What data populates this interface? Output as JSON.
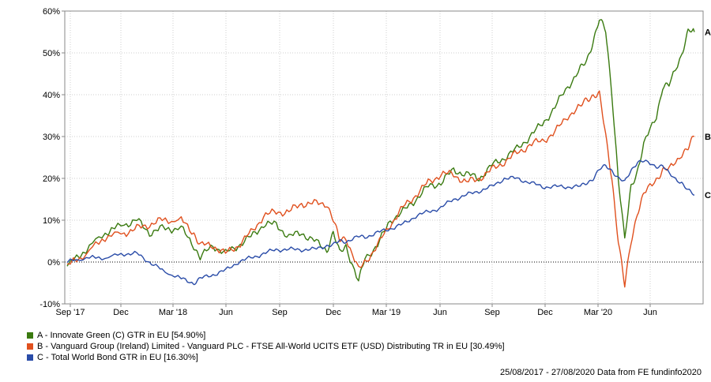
{
  "chart_data": {
    "type": "line",
    "ylim": [
      -10,
      60
    ],
    "y_ticks": [
      "-10%",
      "0%",
      "10%",
      "20%",
      "30%",
      "40%",
      "50%",
      "60%"
    ],
    "x_tick_labels": [
      "Sep '17",
      "Dec",
      "Mar '18",
      "Jun",
      "Sep",
      "Dec",
      "Mar '19",
      "Jun",
      "Sep",
      "Dec",
      "Mar '20",
      "Jun"
    ],
    "grid": true,
    "series": [
      {
        "key": "A",
        "name": "A - Innovate Green (C) GTR in EU [54.90%]",
        "color": "#3a7a10",
        "points": [
          [
            0,
            -1
          ],
          [
            3,
            3
          ],
          [
            6,
            7
          ],
          [
            9,
            9
          ],
          [
            11,
            10
          ],
          [
            13,
            7
          ],
          [
            15,
            8
          ],
          [
            18,
            8
          ],
          [
            20,
            4
          ],
          [
            21,
            1
          ],
          [
            23,
            4
          ],
          [
            25,
            2
          ],
          [
            27,
            4
          ],
          [
            29,
            6
          ],
          [
            31,
            9
          ],
          [
            33,
            9
          ],
          [
            35,
            6
          ],
          [
            37,
            7
          ],
          [
            39,
            5
          ],
          [
            41,
            3
          ],
          [
            42,
            7
          ],
          [
            43,
            2
          ],
          [
            44,
            4
          ],
          [
            46,
            -5
          ],
          [
            47,
            1
          ],
          [
            49,
            4
          ],
          [
            51,
            10
          ],
          [
            53,
            12
          ],
          [
            55,
            15
          ],
          [
            57,
            18
          ],
          [
            59,
            19
          ],
          [
            61,
            22
          ],
          [
            63,
            21
          ],
          [
            65,
            20
          ],
          [
            67,
            23
          ],
          [
            69,
            25
          ],
          [
            71,
            27
          ],
          [
            73,
            30
          ],
          [
            75,
            33
          ],
          [
            77,
            37
          ],
          [
            79,
            42
          ],
          [
            81,
            46
          ],
          [
            82,
            48
          ],
          [
            83,
            53
          ],
          [
            84,
            58
          ],
          [
            85,
            55
          ],
          [
            86,
            40
          ],
          [
            87,
            20
          ],
          [
            88,
            5
          ],
          [
            89,
            18
          ],
          [
            90,
            22
          ],
          [
            91,
            28
          ],
          [
            93,
            35
          ],
          [
            94,
            42
          ],
          [
            95,
            42
          ],
          [
            97,
            50
          ],
          [
            98,
            55
          ],
          [
            99,
            55
          ]
        ]
      },
      {
        "key": "B",
        "name": "B - Vanguard Group (Ireland) Limited - Vanguard PLC - FTSE All-World UCITS ETF (USD) Distributing TR in EU [30.49%]",
        "color": "#e0501e",
        "points": [
          [
            0,
            -1
          ],
          [
            3,
            2
          ],
          [
            6,
            6
          ],
          [
            9,
            7
          ],
          [
            11,
            8
          ],
          [
            13,
            9
          ],
          [
            15,
            10
          ],
          [
            18,
            10
          ],
          [
            20,
            7
          ],
          [
            21,
            4
          ],
          [
            23,
            4
          ],
          [
            25,
            2
          ],
          [
            27,
            4
          ],
          [
            29,
            7
          ],
          [
            31,
            11
          ],
          [
            33,
            12
          ],
          [
            35,
            12
          ],
          [
            37,
            14
          ],
          [
            39,
            14
          ],
          [
            41,
            14
          ],
          [
            42,
            10
          ],
          [
            43,
            5
          ],
          [
            44,
            6
          ],
          [
            46,
            -2
          ],
          [
            47,
            0
          ],
          [
            49,
            4
          ],
          [
            51,
            9
          ],
          [
            53,
            13
          ],
          [
            55,
            16
          ],
          [
            57,
            19
          ],
          [
            59,
            21
          ],
          [
            61,
            21
          ],
          [
            63,
            19
          ],
          [
            65,
            20
          ],
          [
            67,
            22
          ],
          [
            69,
            24
          ],
          [
            71,
            26
          ],
          [
            73,
            28
          ],
          [
            75,
            29
          ],
          [
            77,
            31
          ],
          [
            79,
            35
          ],
          [
            81,
            37
          ],
          [
            82,
            39
          ],
          [
            83,
            40
          ],
          [
            84,
            40
          ],
          [
            85,
            30
          ],
          [
            86,
            20
          ],
          [
            87,
            5
          ],
          [
            88,
            -6
          ],
          [
            89,
            5
          ],
          [
            90,
            12
          ],
          [
            91,
            16
          ],
          [
            93,
            20
          ],
          [
            94,
            22
          ],
          [
            95,
            22
          ],
          [
            97,
            26
          ],
          [
            98,
            27
          ],
          [
            99,
            30
          ]
        ]
      },
      {
        "key": "C",
        "name": "C - Total World Bond GTR in EU [16.30%]",
        "color": "#2a4ca8",
        "points": [
          [
            0,
            0
          ],
          [
            3,
            1
          ],
          [
            6,
            1
          ],
          [
            9,
            2
          ],
          [
            11,
            2
          ],
          [
            13,
            0
          ],
          [
            15,
            -2
          ],
          [
            18,
            -4
          ],
          [
            20,
            -5
          ],
          [
            21,
            -4
          ],
          [
            23,
            -3
          ],
          [
            25,
            -2
          ],
          [
            27,
            0
          ],
          [
            29,
            1
          ],
          [
            31,
            2
          ],
          [
            33,
            3
          ],
          [
            35,
            3
          ],
          [
            37,
            3
          ],
          [
            39,
            3
          ],
          [
            41,
            4
          ],
          [
            42,
            4
          ],
          [
            43,
            5
          ],
          [
            44,
            5
          ],
          [
            46,
            6
          ],
          [
            47,
            6
          ],
          [
            49,
            7
          ],
          [
            51,
            8
          ],
          [
            53,
            9
          ],
          [
            55,
            11
          ],
          [
            57,
            12
          ],
          [
            59,
            13
          ],
          [
            61,
            15
          ],
          [
            63,
            16
          ],
          [
            65,
            17
          ],
          [
            67,
            18
          ],
          [
            69,
            20
          ],
          [
            71,
            20
          ],
          [
            73,
            19
          ],
          [
            75,
            18
          ],
          [
            77,
            18
          ],
          [
            79,
            18
          ],
          [
            81,
            18
          ],
          [
            82,
            19
          ],
          [
            83,
            20
          ],
          [
            84,
            22
          ],
          [
            85,
            23
          ],
          [
            86,
            22
          ],
          [
            87,
            20
          ],
          [
            88,
            19
          ],
          [
            89,
            22
          ],
          [
            90,
            24
          ],
          [
            91,
            24
          ],
          [
            93,
            23
          ],
          [
            94,
            23
          ],
          [
            95,
            21
          ],
          [
            97,
            19
          ],
          [
            98,
            17
          ],
          [
            99,
            16
          ]
        ]
      }
    ],
    "footer": "25/08/2017 - 27/08/2020 Data from FE fundinfo2020"
  }
}
